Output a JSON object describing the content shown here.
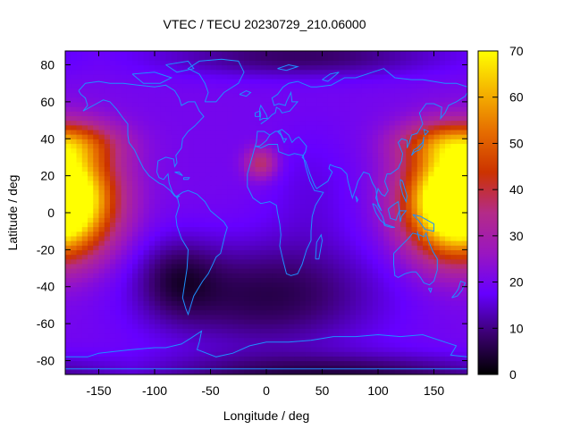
{
  "chart_data": {
    "type": "heatmap",
    "title": "VTEC / TECU 20230729_210.06000",
    "xlabel": "Longitude / deg",
    "ylabel": "Latitude / deg",
    "xlim": [
      -180,
      180
    ],
    "ylim": [
      -87.5,
      87.5
    ],
    "x_ticks": [
      -150,
      -100,
      -50,
      0,
      50,
      100,
      150
    ],
    "y_ticks": [
      -80,
      -60,
      -40,
      -20,
      0,
      20,
      40,
      60,
      80
    ],
    "x_tick_labels": [
      "-150",
      "-100",
      "-50",
      "0",
      "50",
      "100",
      "150"
    ],
    "y_tick_labels": [
      "-80",
      "-60",
      "-40",
      "-20",
      "0",
      "20",
      "40",
      "60",
      "80"
    ],
    "colorbar": {
      "range": [
        0,
        70
      ],
      "ticks": [
        0,
        10,
        20,
        30,
        40,
        50,
        60,
        70
      ],
      "tick_labels": [
        "0",
        "10",
        "20",
        "30",
        "40",
        "50",
        "60",
        "70"
      ],
      "palette": [
        "#000000",
        "#3b0070",
        "#6600ff",
        "#9a16c0",
        "#b42b88",
        "#cc3300",
        "#e66d00",
        "#f5b400",
        "#ffff00"
      ]
    },
    "coastline_color": "#1e90ff",
    "grid": false,
    "features": [
      {
        "name": "equatorial anomaly west",
        "lon": -175,
        "lat": 5,
        "peak_tecu": 68
      },
      {
        "name": "equatorial anomaly east",
        "lon": 165,
        "lat": 5,
        "peak_tecu": 64
      },
      {
        "name": "north-central Africa patch",
        "lon": -5,
        "lat": 27,
        "peak_tecu": 38
      },
      {
        "name": "southern trough",
        "lon": 0,
        "lat": -45,
        "peak_tecu": 5
      },
      {
        "name": "background level",
        "peak_tecu": 20
      }
    ]
  }
}
